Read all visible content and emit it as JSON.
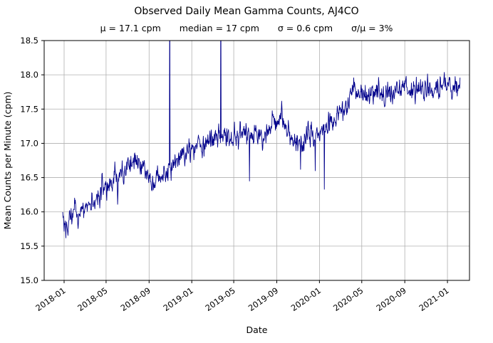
{
  "chart_data": {
    "type": "line",
    "title": "Observed Daily Mean Gamma Counts, AJ4CO",
    "stats": {
      "mu": "μ = 17.1 cpm",
      "median": "median = 17 cpm",
      "sigma": "σ = 0.6 cpm",
      "sigma_over_mu": "σ/μ = 3%"
    },
    "xlabel": "Date",
    "ylabel": "Mean Counts per Minute (cpm)",
    "ylim": [
      15.0,
      18.5
    ],
    "yticks": [
      15.0,
      15.5,
      16.0,
      16.5,
      17.0,
      17.5,
      18.0,
      18.5
    ],
    "xticks": [
      {
        "label": "2018-01",
        "date": "2018-01-01"
      },
      {
        "label": "2018-05",
        "date": "2018-05-01"
      },
      {
        "label": "2018-09",
        "date": "2018-09-01"
      },
      {
        "label": "2019-01",
        "date": "2019-01-01"
      },
      {
        "label": "2019-05",
        "date": "2019-05-01"
      },
      {
        "label": "2019-09",
        "date": "2019-09-01"
      },
      {
        "label": "2020-01",
        "date": "2020-01-01"
      },
      {
        "label": "2020-05",
        "date": "2020-05-01"
      },
      {
        "label": "2020-09",
        "date": "2020-09-01"
      },
      {
        "label": "2021-01",
        "date": "2021-01-01"
      }
    ],
    "x_range": [
      "2017-11-05",
      "2021-03-05"
    ],
    "data_range": [
      "2017-12-28",
      "2021-02-06"
    ],
    "grid": true,
    "legend": "none",
    "line_color": "#00008b",
    "grid_color": "#b0b0b0",
    "series_name": "daily mean gamma counts (cpm)",
    "trend_anchors": [
      [
        "2017-12-28",
        15.9
      ],
      [
        "2018-01-08",
        15.78
      ],
      [
        "2018-01-20",
        15.95
      ],
      [
        "2018-02-05",
        16.0
      ],
      [
        "2018-02-20",
        16.08
      ],
      [
        "2018-03-10",
        16.12
      ],
      [
        "2018-03-25",
        16.05
      ],
      [
        "2018-04-10",
        16.3
      ],
      [
        "2018-05-01",
        16.35
      ],
      [
        "2018-05-20",
        16.5
      ],
      [
        "2018-06-10",
        16.55
      ],
      [
        "2018-06-25",
        16.6
      ],
      [
        "2018-07-15",
        16.7
      ],
      [
        "2018-08-01",
        16.75
      ],
      [
        "2018-08-20",
        16.6
      ],
      [
        "2018-09-05",
        16.45
      ],
      [
        "2018-09-15",
        16.3
      ],
      [
        "2018-09-25",
        16.6
      ],
      [
        "2018-10-10",
        16.6
      ],
      [
        "2018-10-25",
        16.65
      ],
      [
        "2018-11-10",
        16.7
      ],
      [
        "2018-12-01",
        16.75
      ],
      [
        "2018-12-20",
        16.85
      ],
      [
        "2019-01-05",
        16.95
      ],
      [
        "2019-01-25",
        17.0
      ],
      [
        "2019-02-15",
        17.0
      ],
      [
        "2019-03-05",
        17.05
      ],
      [
        "2019-03-25",
        17.1
      ],
      [
        "2019-04-15",
        17.15
      ],
      [
        "2019-05-05",
        17.1
      ],
      [
        "2019-05-25",
        17.15
      ],
      [
        "2019-06-15",
        17.1
      ],
      [
        "2019-07-05",
        17.15
      ],
      [
        "2019-07-25",
        17.1
      ],
      [
        "2019-08-15",
        17.25
      ],
      [
        "2019-09-01",
        17.3
      ],
      [
        "2019-09-20",
        17.3
      ],
      [
        "2019-10-10",
        17.15
      ],
      [
        "2019-10-25",
        17.05
      ],
      [
        "2019-11-10",
        17.0
      ],
      [
        "2019-11-25",
        17.1
      ],
      [
        "2019-12-15",
        17.1
      ],
      [
        "2020-01-05",
        17.15
      ],
      [
        "2020-01-25",
        17.3
      ],
      [
        "2020-02-15",
        17.35
      ],
      [
        "2020-03-05",
        17.45
      ],
      [
        "2020-03-25",
        17.6
      ],
      [
        "2020-04-10",
        17.8
      ],
      [
        "2020-04-25",
        17.7
      ],
      [
        "2020-05-15",
        17.75
      ],
      [
        "2020-06-05",
        17.7
      ],
      [
        "2020-07-01",
        17.72
      ],
      [
        "2020-08-01",
        17.75
      ],
      [
        "2020-09-01",
        17.8
      ],
      [
        "2020-10-01",
        17.75
      ],
      [
        "2020-11-01",
        17.8
      ],
      [
        "2020-12-01",
        17.82
      ],
      [
        "2021-01-01",
        17.85
      ],
      [
        "2021-02-06",
        17.8
      ]
    ],
    "spikes_up": [
      [
        "2018-10-30",
        19.6
      ],
      [
        "2019-03-25",
        19.6
      ]
    ],
    "spikes_down": [
      [
        "2018-01-06",
        15.62
      ],
      [
        "2019-06-15",
        16.45
      ],
      [
        "2019-11-08",
        16.62
      ],
      [
        "2019-12-20",
        16.6
      ],
      [
        "2020-01-15",
        16.33
      ]
    ],
    "noise": {
      "ar": 0.5,
      "sigma": 0.075,
      "seed": 20210206
    }
  }
}
